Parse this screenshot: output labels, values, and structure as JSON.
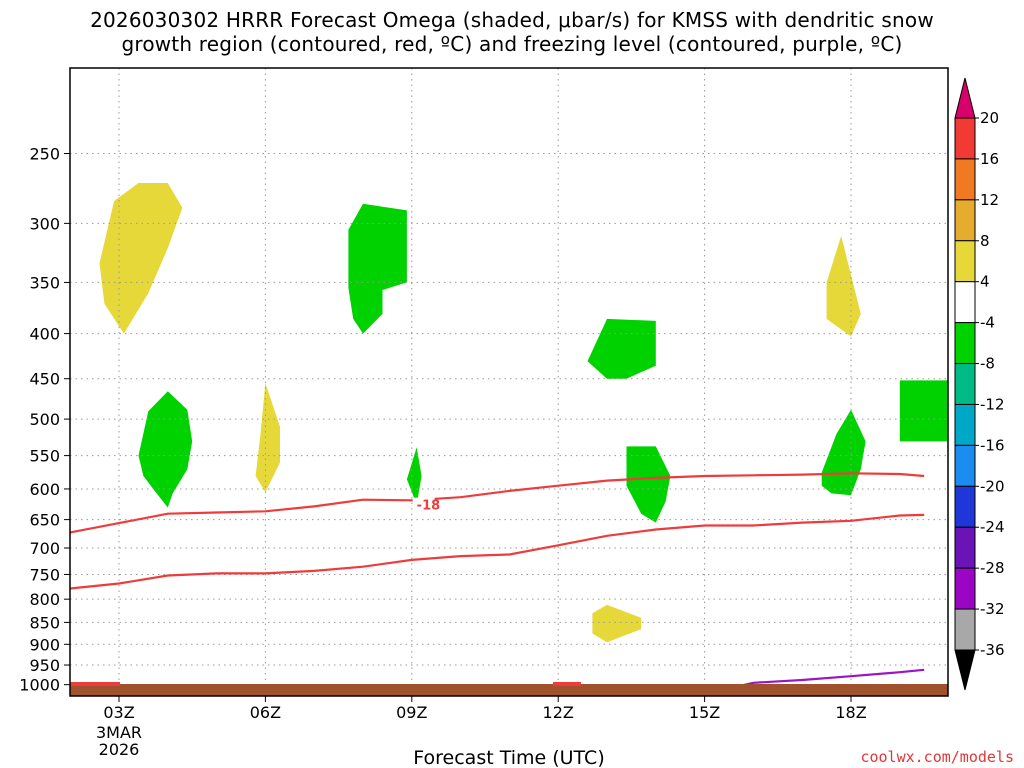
{
  "title_line1": "2026030302 HRRR Forecast Omega (shaded, μbar/s) for KMSS with dendritic snow",
  "title_line2": "growth region (contoured, red, ºC) and freezing level (contoured, purple, ºC)",
  "credit": "coolwx.com/models",
  "chart_data": {
    "type": "time-height cross section",
    "xlabel": "Forecast Time (UTC)",
    "x_ticks": [
      {
        "hour": 0,
        "label": "03Z",
        "sub": [
          "3MAR",
          "2026"
        ]
      },
      {
        "hour": 3,
        "label": "06Z",
        "sub": []
      },
      {
        "hour": 6,
        "label": "09Z",
        "sub": []
      },
      {
        "hour": 9,
        "label": "12Z",
        "sub": []
      },
      {
        "hour": 12,
        "label": "15Z",
        "sub": []
      },
      {
        "hour": 15,
        "label": "18Z",
        "sub": []
      }
    ],
    "x_range_hours": [
      -1,
      16.5
    ],
    "y_ticks": [
      "250",
      "300",
      "350",
      "400",
      "450",
      "500",
      "550",
      "600",
      "650",
      "700",
      "750",
      "800",
      "850",
      "900",
      "950",
      "1000"
    ],
    "y_range_hpa": [
      200,
      1030
    ],
    "y_scale": "log",
    "grid": true,
    "colorbar": {
      "labels": [
        "20",
        "16",
        "12",
        "8",
        "4",
        "-4",
        "-8",
        "-12",
        "-16",
        "-20",
        "-24",
        "-28",
        "-32",
        "-36"
      ],
      "colors": [
        "#d8006a",
        "#f23a34",
        "#f07a22",
        "#e6ac2e",
        "#e6d838",
        "#ffffff",
        "#00d200",
        "#00bb86",
        "#00a8c8",
        "#1b8cf0",
        "#1f37d8",
        "#6a14b8",
        "#9b06c4",
        "#a8a8a8",
        "#000000"
      ]
    },
    "omega_regions": [
      {
        "value": 4,
        "color": "#e6d838",
        "points": [
          [
            -0.4,
            333
          ],
          [
            -0.1,
            283
          ],
          [
            0.4,
            270
          ],
          [
            1.0,
            270
          ],
          [
            1.3,
            288
          ],
          [
            1.0,
            320
          ],
          [
            0.6,
            360
          ],
          [
            0.1,
            400
          ],
          [
            -0.3,
            370
          ]
        ]
      },
      {
        "value": 4,
        "color": "#e6d838",
        "points": [
          [
            2.9,
            520
          ],
          [
            3.0,
            455
          ],
          [
            3.3,
            510
          ],
          [
            3.3,
            560
          ],
          [
            3.0,
            605
          ],
          [
            2.8,
            580
          ]
        ]
      },
      {
        "value": 4,
        "color": "#e6d838",
        "points": [
          [
            14.5,
            350
          ],
          [
            14.8,
            310
          ],
          [
            15.2,
            380
          ],
          [
            15.0,
            403
          ],
          [
            14.5,
            385
          ]
        ]
      },
      {
        "value": 4,
        "color": "#e6d838",
        "points": [
          [
            9.7,
            830
          ],
          [
            10.0,
            812
          ],
          [
            10.7,
            840
          ],
          [
            10.7,
            865
          ],
          [
            10.0,
            895
          ],
          [
            9.7,
            875
          ]
        ]
      },
      {
        "value": -4,
        "color": "#00d200",
        "points": [
          [
            4.7,
            305
          ],
          [
            5.0,
            285
          ],
          [
            5.9,
            290
          ],
          [
            5.9,
            350
          ],
          [
            5.4,
            357
          ],
          [
            5.4,
            380
          ],
          [
            5.0,
            400
          ],
          [
            4.8,
            385
          ],
          [
            4.7,
            355
          ],
          [
            4.7,
            340
          ]
        ]
      },
      {
        "value": -4,
        "color": "#00d200",
        "points": [
          [
            0.4,
            550
          ],
          [
            0.6,
            490
          ],
          [
            1.0,
            465
          ],
          [
            1.4,
            488
          ],
          [
            1.5,
            530
          ],
          [
            1.4,
            570
          ],
          [
            1.1,
            607
          ],
          [
            1.0,
            630
          ],
          [
            0.7,
            600
          ],
          [
            0.5,
            580
          ]
        ]
      },
      {
        "value": -4,
        "color": "#00d200",
        "points": [
          [
            5.9,
            585
          ],
          [
            6.1,
            538
          ],
          [
            6.2,
            580
          ],
          [
            6.1,
            625
          ]
        ]
      },
      {
        "value": -4,
        "color": "#00d200",
        "points": [
          [
            9.6,
            430
          ],
          [
            10.0,
            385
          ],
          [
            11.0,
            387
          ],
          [
            11.0,
            435
          ],
          [
            10.4,
            450
          ],
          [
            10.0,
            450
          ]
        ]
      },
      {
        "value": -4,
        "color": "#00d200",
        "points": [
          [
            10.4,
            537
          ],
          [
            11.0,
            537
          ],
          [
            11.3,
            580
          ],
          [
            11.2,
            620
          ],
          [
            11.0,
            655
          ],
          [
            10.7,
            640
          ],
          [
            10.4,
            595
          ]
        ]
      },
      {
        "value": -4,
        "color": "#00d200",
        "points": [
          [
            14.4,
            575
          ],
          [
            14.7,
            520
          ],
          [
            15.0,
            488
          ],
          [
            15.3,
            530
          ],
          [
            15.2,
            570
          ],
          [
            15.0,
            610
          ],
          [
            14.6,
            607
          ],
          [
            14.4,
            595
          ]
        ]
      },
      {
        "value": -4,
        "color": "#00d200",
        "points": [
          [
            16.0,
            452
          ],
          [
            17.0,
            452
          ],
          [
            17.0,
            530
          ],
          [
            16.0,
            530
          ]
        ]
      }
    ],
    "isotherms": [
      {
        "color": "#ee3c3c",
        "label": "-18",
        "label_x": 6.1,
        "label_p": 617,
        "points": [
          [
            -1.0,
            672
          ],
          [
            0.0,
            656
          ],
          [
            1.0,
            640
          ],
          [
            2.0,
            638
          ],
          [
            3.0,
            636
          ],
          [
            4.0,
            628
          ],
          [
            5.0,
            617
          ],
          [
            6.0,
            618
          ],
          [
            7.0,
            613
          ],
          [
            8.0,
            603
          ],
          [
            9.0,
            595
          ],
          [
            10.0,
            587
          ],
          [
            11.0,
            583
          ],
          [
            12.0,
            580
          ],
          [
            13.0,
            579
          ],
          [
            14.0,
            578
          ],
          [
            15.0,
            576
          ],
          [
            16.0,
            577
          ],
          [
            16.5,
            580
          ]
        ]
      },
      {
        "color": "#ee3c3c",
        "label": "",
        "label_x": null,
        "label_p": null,
        "points": [
          [
            -1.0,
            778
          ],
          [
            0.0,
            768
          ],
          [
            1.0,
            752
          ],
          [
            2.0,
            748
          ],
          [
            3.0,
            748
          ],
          [
            4.0,
            743
          ],
          [
            5.0,
            735
          ],
          [
            6.0,
            722
          ],
          [
            7.0,
            715
          ],
          [
            8.0,
            712
          ],
          [
            9.0,
            695
          ],
          [
            10.0,
            678
          ],
          [
            11.0,
            667
          ],
          [
            12.0,
            660
          ],
          [
            13.0,
            660
          ],
          [
            14.0,
            655
          ],
          [
            15.0,
            652
          ],
          [
            16.0,
            643
          ],
          [
            16.5,
            642
          ]
        ]
      },
      {
        "color": "#9a14c8",
        "label": "",
        "label_x": null,
        "label_p": null,
        "points": [
          [
            12.3,
            1015
          ],
          [
            13.0,
            995
          ],
          [
            14.0,
            988
          ],
          [
            15.0,
            978
          ],
          [
            16.0,
            968
          ],
          [
            16.5,
            962
          ]
        ]
      }
    ],
    "surface_bar": {
      "color": "#a0522d"
    }
  }
}
